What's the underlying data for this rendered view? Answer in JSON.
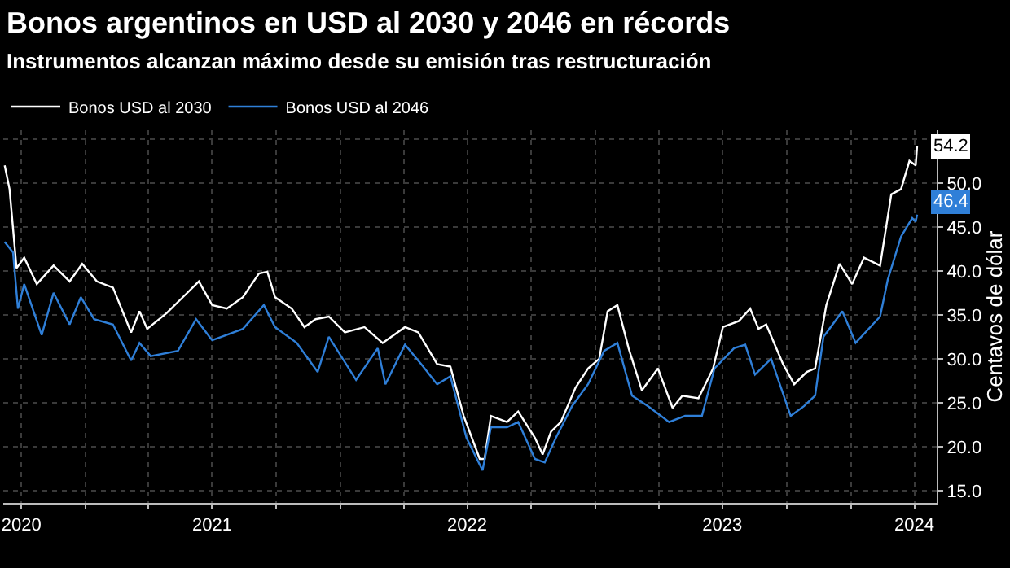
{
  "chart_data": {
    "type": "line",
    "title": "Bonos argentinos en USD al 2030 y 2046 en récords",
    "subtitle": "Instrumentos alcanzan máximo desde su emisión tras restructuración",
    "ylabel": "Centavos de dólar",
    "xlim": [
      "2020-09-05",
      "2024-05-03"
    ],
    "ylim": [
      13.6,
      56
    ],
    "xticks": [
      {
        "value": "2020-10-01",
        "label": "2020"
      },
      {
        "value": "2021-01-01",
        "label": null
      },
      {
        "value": "2021-04-01",
        "label": null
      },
      {
        "value": "2021-07-01",
        "label": "2021"
      },
      {
        "value": "2021-10-01",
        "label": null
      },
      {
        "value": "2022-01-01",
        "label": null
      },
      {
        "value": "2022-04-01",
        "label": null
      },
      {
        "value": "2022-07-01",
        "label": "2022"
      },
      {
        "value": "2022-10-01",
        "label": null
      },
      {
        "value": "2023-01-01",
        "label": null
      },
      {
        "value": "2023-04-01",
        "label": null
      },
      {
        "value": "2023-07-01",
        "label": "2023"
      },
      {
        "value": "2023-10-01",
        "label": null
      },
      {
        "value": "2024-01-01",
        "label": null
      },
      {
        "value": "2024-04-01",
        "label": "2024"
      }
    ],
    "yticks": [
      {
        "value": 15,
        "label": "15.0"
      },
      {
        "value": 20,
        "label": "20.0"
      },
      {
        "value": 25,
        "label": "25.0"
      },
      {
        "value": 30,
        "label": "30.0"
      },
      {
        "value": 35,
        "label": "35.0"
      },
      {
        "value": 40,
        "label": "40.0"
      },
      {
        "value": 45,
        "label": "45.0"
      },
      {
        "value": 50,
        "label": "50.0"
      },
      {
        "value": 55,
        "label": null
      }
    ],
    "grid": true,
    "legend": "top left",
    "marker": "none",
    "line_style": "solid",
    "series": [
      {
        "name": "Bonos USD al 2030",
        "color": "#ffffff",
        "x": [
          "2020-09-07",
          "2020-09-14",
          "2020-09-24",
          "2020-10-05",
          "2020-10-23",
          "2020-11-16",
          "2020-12-09",
          "2020-12-27",
          "2021-01-17",
          "2021-02-09",
          "2021-03-07",
          "2021-03-19",
          "2021-03-30",
          "2021-04-27",
          "2021-05-20",
          "2021-06-12",
          "2021-07-01",
          "2021-07-22",
          "2021-08-14",
          "2021-09-06",
          "2021-09-18",
          "2021-09-29",
          "2021-10-23",
          "2021-11-10",
          "2021-11-26",
          "2021-12-15",
          "2022-01-07",
          "2022-02-04",
          "2022-03-02",
          "2022-04-03",
          "2022-04-22",
          "2022-05-19",
          "2022-06-07",
          "2022-06-26",
          "2022-07-19",
          "2022-07-26",
          "2022-08-04",
          "2022-08-27",
          "2022-09-12",
          "2022-10-06",
          "2022-10-17",
          "2022-10-29",
          "2022-11-12",
          "2022-12-03",
          "2022-12-21",
          "2023-01-06",
          "2023-01-18",
          "2023-02-01",
          "2023-02-17",
          "2023-03-08",
          "2023-03-31",
          "2023-04-21",
          "2023-05-05",
          "2023-05-28",
          "2023-06-18",
          "2023-07-02",
          "2023-07-25",
          "2023-08-10",
          "2023-08-22",
          "2023-09-02",
          "2023-09-26",
          "2023-10-12",
          "2023-10-30",
          "2023-11-11",
          "2023-11-27",
          "2023-12-16",
          "2024-01-03",
          "2024-01-20",
          "2024-02-12",
          "2024-02-28",
          "2024-03-13",
          "2024-03-25",
          "2024-04-03",
          "2024-04-05"
        ],
        "values": [
          52.0,
          49.3,
          40.3,
          41.5,
          38.5,
          40.6,
          38.8,
          40.8,
          38.8,
          38.1,
          33.0,
          35.4,
          33.4,
          35.2,
          37.0,
          38.8,
          36.1,
          35.7,
          37.0,
          39.7,
          39.9,
          37.0,
          35.7,
          33.6,
          34.5,
          34.8,
          33.0,
          33.6,
          31.8,
          33.6,
          33.0,
          29.4,
          29.1,
          23.5,
          18.6,
          18.6,
          23.5,
          22.8,
          24.0,
          21.0,
          19.1,
          21.7,
          22.8,
          26.7,
          28.9,
          30.0,
          35.4,
          36.1,
          31.2,
          26.4,
          28.9,
          24.4,
          25.8,
          25.5,
          28.9,
          33.6,
          34.3,
          35.7,
          33.4,
          33.9,
          29.4,
          27.1,
          28.5,
          28.9,
          36.1,
          40.8,
          38.5,
          41.5,
          40.6,
          48.7,
          49.3,
          52.5,
          52.0,
          54.2
        ]
      },
      {
        "name": "Bonos USD al 2046",
        "color": "#2f7fd8",
        "x": [
          "2020-09-07",
          "2020-09-19",
          "2020-09-26",
          "2020-10-05",
          "2020-10-30",
          "2020-11-16",
          "2020-12-09",
          "2020-12-25",
          "2021-01-13",
          "2021-02-09",
          "2021-03-07",
          "2021-03-19",
          "2021-04-04",
          "2021-05-13",
          "2021-06-08",
          "2021-07-01",
          "2021-08-14",
          "2021-09-13",
          "2021-09-29",
          "2021-10-30",
          "2021-11-29",
          "2021-12-15",
          "2022-01-23",
          "2022-02-23",
          "2022-03-06",
          "2022-04-03",
          "2022-04-26",
          "2022-05-19",
          "2022-06-07",
          "2022-06-30",
          "2022-07-23",
          "2022-08-04",
          "2022-08-27",
          "2022-09-12",
          "2022-10-06",
          "2022-10-20",
          "2022-11-05",
          "2022-11-28",
          "2022-12-21",
          "2023-01-13",
          "2023-02-01",
          "2023-02-22",
          "2023-03-17",
          "2023-04-16",
          "2023-05-09",
          "2023-06-02",
          "2023-06-20",
          "2023-07-18",
          "2023-08-03",
          "2023-08-17",
          "2023-09-09",
          "2023-10-07",
          "2023-10-26",
          "2023-11-11",
          "2023-11-23",
          "2023-12-20",
          "2024-01-08",
          "2024-02-12",
          "2024-02-23",
          "2024-03-13",
          "2024-03-29",
          "2024-04-03",
          "2024-04-05"
        ],
        "values": [
          43.3,
          42.1,
          35.7,
          38.5,
          32.7,
          37.5,
          33.9,
          37.0,
          34.5,
          33.9,
          29.8,
          31.8,
          30.3,
          30.9,
          34.5,
          32.1,
          33.4,
          36.1,
          33.6,
          31.8,
          28.5,
          32.5,
          27.6,
          31.2,
          27.1,
          31.6,
          29.4,
          27.1,
          28.0,
          21.0,
          17.3,
          22.2,
          22.2,
          22.8,
          18.6,
          18.2,
          21.0,
          24.6,
          27.1,
          30.9,
          31.8,
          25.8,
          24.6,
          22.8,
          23.5,
          23.5,
          28.9,
          31.2,
          31.6,
          28.2,
          30.0,
          23.5,
          24.6,
          25.8,
          32.5,
          35.4,
          31.8,
          34.8,
          39.0,
          43.9,
          46.0,
          45.6,
          46.4
        ]
      }
    ],
    "annotations": [
      {
        "text": "54.2",
        "x": "2024-04-05",
        "y": 54.2
      },
      {
        "text": "46.4",
        "x": "2024-04-05",
        "y": 46.4
      }
    ]
  }
}
